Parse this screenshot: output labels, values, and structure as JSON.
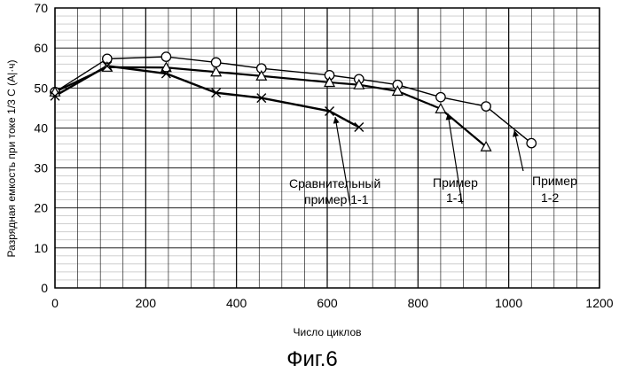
{
  "chart_data": {
    "type": "line",
    "title": "",
    "xlabel": "Число циклов",
    "ylabel": "Разрядная емкость при токе 1/3 С (А|·ч)",
    "xlim": [
      0,
      1200
    ],
    "ylim": [
      0,
      70
    ],
    "x_ticks": [
      "0",
      "200",
      "400",
      "600",
      "800",
      "1000",
      "1200"
    ],
    "y_ticks": [
      "0",
      "10",
      "20",
      "30",
      "40",
      "50",
      "60",
      "70"
    ],
    "grid": true,
    "series": [
      {
        "name": "Пример 1-2",
        "marker": "circle",
        "x": [
          0,
          115,
          245,
          355,
          455,
          605,
          670,
          755,
          850,
          950,
          1050
        ],
        "y": [
          49,
          57.3,
          57.8,
          56.4,
          54.9,
          53.2,
          52.2,
          50.8,
          47.7,
          45.4,
          36.2
        ]
      },
      {
        "name": "Пример 1-1",
        "marker": "triangle",
        "x": [
          0,
          115,
          245,
          355,
          455,
          605,
          670,
          755,
          850,
          950
        ],
        "y": [
          49,
          55.2,
          55.1,
          54.0,
          53.0,
          51.4,
          50.8,
          49.2,
          44.8,
          35.3
        ]
      },
      {
        "name": "Сравнительный пример 1-1",
        "marker": "x",
        "x": [
          0,
          115,
          245,
          355,
          455,
          605,
          670
        ],
        "y": [
          48,
          55.5,
          53.6,
          48.8,
          47.5,
          44.2,
          40.2
        ]
      }
    ],
    "annotations": [
      {
        "lines": [
          "Сравнительный",
          "пример 1-1"
        ]
      },
      {
        "lines": [
          "Пример",
          "1-1"
        ]
      },
      {
        "lines": [
          "Пример",
          "1-2"
        ]
      }
    ]
  },
  "figure_caption": "Фиг.6",
  "colors": {
    "line": "#000000",
    "grid": "#000000",
    "background": "#ffffff"
  }
}
